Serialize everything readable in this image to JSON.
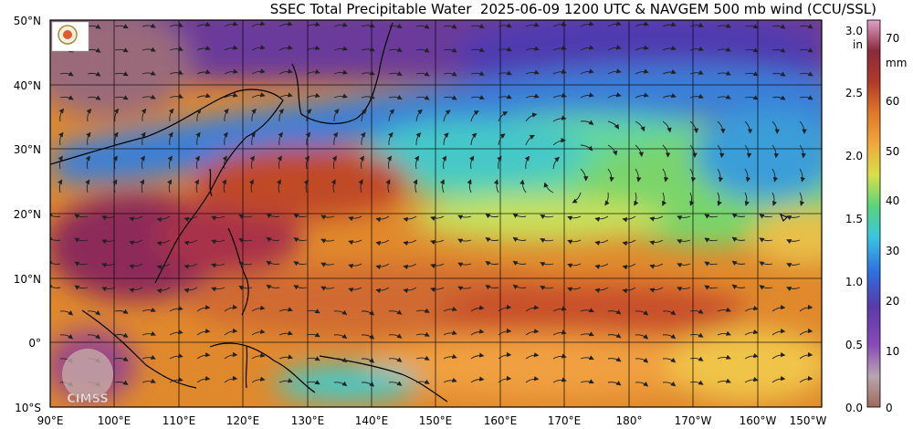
{
  "title": "SSEC Total Precipitable Water  2025-06-09 1200 UTC & NAVGEM 500 mb wind (CCU/SSL)",
  "lat_labels": [
    "50°N",
    "40°N",
    "30°N",
    "20°N",
    "10°N",
    "0°",
    "10°S"
  ],
  "lon_labels": [
    "90°E",
    "100°E",
    "110°E",
    "120°E",
    "130°E",
    "140°E",
    "150°E",
    "160°E",
    "170°E",
    "180°",
    "170°W",
    "160°W",
    "150°W"
  ],
  "colorbar": {
    "in_unit": "in",
    "mm_unit": "mm",
    "in_ticks": [
      "3.0",
      "2.5",
      "2.0",
      "1.5",
      "1.0",
      "0.5",
      "0.0"
    ],
    "mm_ticks": [
      "70",
      "60",
      "50",
      "40",
      "30",
      "20",
      "10",
      "0"
    ]
  },
  "watermark": "CIMSS",
  "colors": {
    "very_moist": "#8c2a5a",
    "moist": "#c04a28",
    "orange": "#e0892c",
    "yellow": "#f0c44a",
    "green": "#7ad46a",
    "cyan": "#45c8c8",
    "blue": "#3a7fd8",
    "purple": "#6a3a9a",
    "dry_brown": "#9a6a5a"
  }
}
